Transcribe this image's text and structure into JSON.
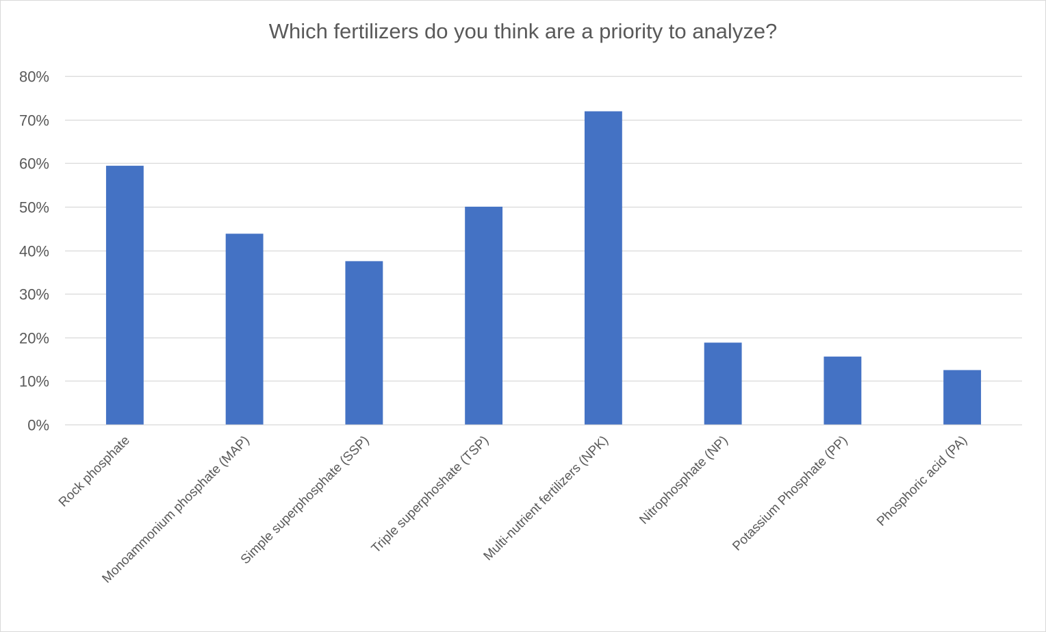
{
  "chart_data": {
    "type": "bar",
    "title": "Which fertilizers do you think are a priority to analyze?",
    "xlabel": "",
    "ylabel": "",
    "categories": [
      "Rock phosphate",
      "Monoammonium phosphate (MAP)",
      "Simple superphosphate (SSP)",
      "Triple superphoshate (TSP)",
      "Multi-nutrient fertilizers (NPK)",
      "Nitrophosphate (NP)",
      "Potassium Phosphate (PP)",
      "Phosphoric acid (PA)"
    ],
    "values": [
      59.4,
      43.8,
      37.5,
      50.0,
      71.9,
      18.8,
      15.6,
      12.5
    ],
    "ylim": [
      0,
      80
    ],
    "yticks": [
      0,
      10,
      20,
      30,
      40,
      50,
      60,
      70,
      80
    ],
    "ytick_labels": [
      "0%",
      "10%",
      "20%",
      "30%",
      "40%",
      "50%",
      "60%",
      "70%",
      "80%"
    ],
    "grid": true,
    "legend": "none",
    "bar_color": "#4472c4",
    "grid_color": "#d9d9d9",
    "text_color": "#595959"
  }
}
